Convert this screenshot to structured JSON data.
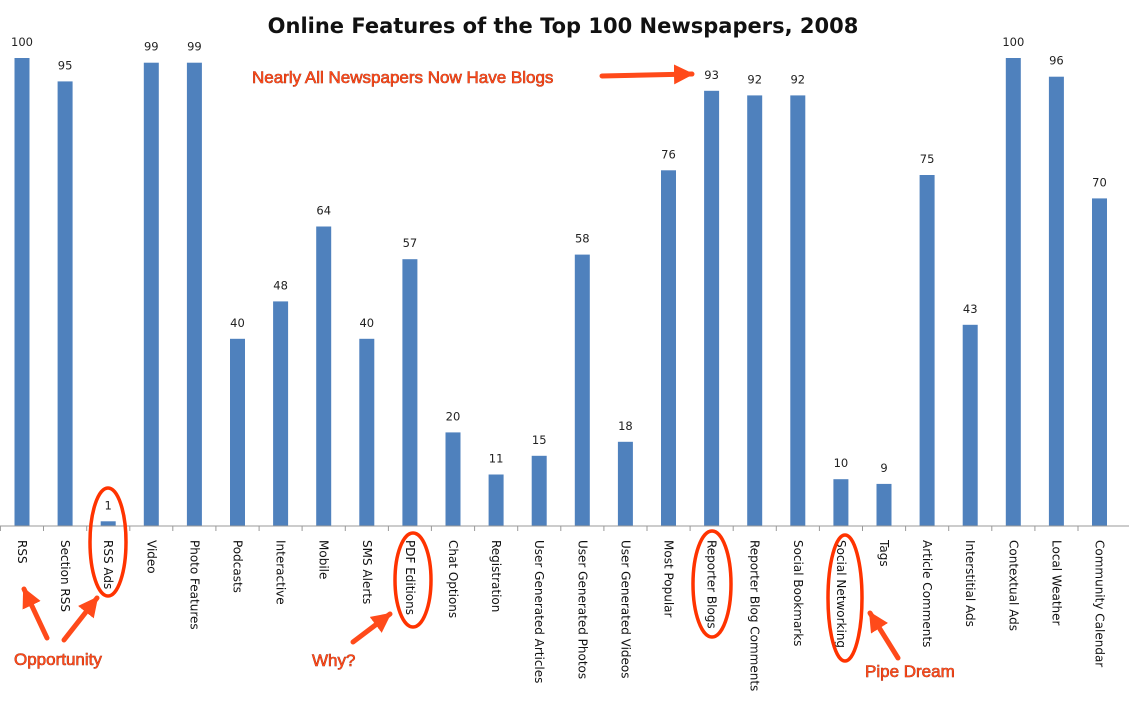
{
  "chart_data": {
    "type": "bar",
    "title": "Online Features of the Top 100 Newspapers, 2008",
    "categories": [
      "RSS",
      "Section RSS",
      "RSS Ads",
      "Video",
      "Photo Features",
      "Podcasts",
      "Interactive",
      "Mobile",
      "SMS Alerts",
      "PDF Editions",
      "Chat Options",
      "Registration",
      "User Generated Articles",
      "User Generated Photos",
      "User Generated Videos",
      "Most Popular",
      "Reporter Blogs",
      "Reporter Blog Comments",
      "Social Bookmarks",
      "Social Networking",
      "Tags",
      "Article Comments",
      "Interstitial Ads",
      "Contextual Ads",
      "Local Weather",
      "Community Calendar"
    ],
    "values": [
      100,
      95,
      1,
      99,
      99,
      40,
      48,
      64,
      40,
      57,
      20,
      11,
      15,
      58,
      18,
      76,
      93,
      92,
      92,
      10,
      9,
      75,
      43,
      100,
      96,
      70
    ],
    "bar_color": "#4f81bd",
    "ylim": [
      0,
      100
    ],
    "grid": false,
    "legend": "none",
    "annotations": [
      {
        "text": "Nearly All Newspapers Now Have Blogs",
        "target": "Reporter Blogs"
      },
      {
        "text": "Opportunity",
        "target": "RSS Ads"
      },
      {
        "text": "Why?",
        "target": "PDF Editions"
      },
      {
        "text": "Pipe Dream",
        "target": "Social Networking"
      }
    ],
    "annotation_color": "#ff4a1a"
  }
}
